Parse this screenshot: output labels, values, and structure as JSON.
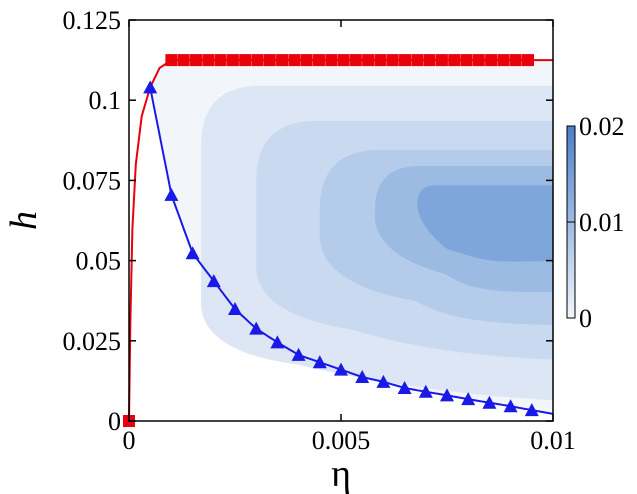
{
  "chart_data": {
    "type": "contour",
    "xlabel": "η",
    "ylabel": "h",
    "xlim": [
      0,
      0.01
    ],
    "ylim": [
      0,
      0.125
    ],
    "x_ticks": [
      {
        "value": 0,
        "label": "0"
      },
      {
        "value": 0.005,
        "label": "0.005"
      },
      {
        "value": 0.01,
        "label": "0.01"
      }
    ],
    "y_ticks": [
      {
        "value": 0,
        "label": "0"
      },
      {
        "value": 0.025,
        "label": "0.025"
      },
      {
        "value": 0.05,
        "label": "0.05"
      },
      {
        "value": 0.075,
        "label": "0.075"
      },
      {
        "value": 0.1,
        "label": "0.1"
      },
      {
        "value": 0.125,
        "label": "0.125"
      }
    ],
    "colorbar": {
      "range": [
        0,
        0.02
      ],
      "ticks": [
        {
          "value": 0,
          "label": "0"
        },
        {
          "value": 0.01,
          "label": "0.01"
        },
        {
          "value": 0.02,
          "label": "0.02"
        }
      ],
      "low_color": "#f2f6fb",
      "high_color": "#4a7fcc"
    },
    "contour_levels": [
      {
        "min_eta": 0.0017,
        "h_top": 0.1045,
        "bottom_curve": 0.0245,
        "color": "#dce6f4"
      },
      {
        "min_eta": 0.003,
        "h_top": 0.0935,
        "bottom_curve": 0.036,
        "color": "#c9daf0"
      },
      {
        "min_eta": 0.0045,
        "h_top": 0.0845,
        "bottom_curve": 0.0455,
        "color": "#b4cbea"
      },
      {
        "min_eta": 0.0058,
        "h_top": 0.0795,
        "bottom_curve": 0.0545,
        "color": "#9cbbe3"
      },
      {
        "min_eta": 0.0068,
        "h_top": 0.0735,
        "bottom_curve": 0.063,
        "color": "#7ea6da"
      }
    ],
    "series": [
      {
        "type": "line",
        "color": "#e8000b",
        "marker": "square",
        "x": [
          0.0,
          0.001,
          0.00129,
          0.00158,
          0.00187,
          0.00216,
          0.00245,
          0.00274,
          0.00303,
          0.00332,
          0.00361,
          0.0039,
          0.00419,
          0.00448,
          0.00477,
          0.00506,
          0.00535,
          0.00564,
          0.00593,
          0.00622,
          0.00651,
          0.0068,
          0.00709,
          0.00738,
          0.00767,
          0.00796,
          0.00825,
          0.00854,
          0.00883,
          0.00912,
          0.00941
        ],
        "y": [
          0.0,
          0.1125,
          0.1125,
          0.1125,
          0.1125,
          0.1125,
          0.1125,
          0.1125,
          0.1125,
          0.1125,
          0.1125,
          0.1125,
          0.1125,
          0.1125,
          0.1125,
          0.1125,
          0.1125,
          0.1125,
          0.1125,
          0.1125,
          0.1125,
          0.1125,
          0.1125,
          0.1125,
          0.1125,
          0.1125,
          0.1125,
          0.1125,
          0.1125,
          0.1125,
          0.1125
        ]
      },
      {
        "type": "line",
        "color": "#1a1ae6",
        "marker": "triangle",
        "x": [
          0.0005,
          0.001,
          0.0015,
          0.002,
          0.0025,
          0.003,
          0.0035,
          0.004,
          0.0045,
          0.005,
          0.0055,
          0.006,
          0.0065,
          0.007,
          0.0075,
          0.008,
          0.0085,
          0.009,
          0.0095
        ],
        "y": [
          0.104,
          0.0705,
          0.0523,
          0.0436,
          0.0349,
          0.0288,
          0.0245,
          0.0206,
          0.0183,
          0.016,
          0.0137,
          0.0122,
          0.0103,
          0.0091,
          0.008,
          0.0068,
          0.0057,
          0.0046,
          0.0034
        ]
      }
    ]
  }
}
